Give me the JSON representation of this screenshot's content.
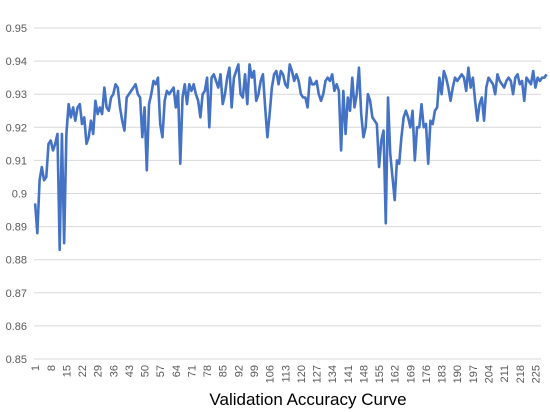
{
  "chart_data": {
    "type": "line",
    "xlabel": "Validation Accuracy Curve",
    "ylabel": "",
    "title": "",
    "ylim": [
      0.85,
      0.95
    ],
    "y_ticks": [
      "0.85",
      "0.86",
      "0.87",
      "0.88",
      "0.89",
      "0.9",
      "0.91",
      "0.92",
      "0.93",
      "0.94",
      "0.95"
    ],
    "x_ticks": [
      1,
      8,
      15,
      22,
      29,
      36,
      43,
      50,
      57,
      64,
      71,
      78,
      85,
      92,
      99,
      106,
      113,
      120,
      127,
      134,
      141,
      148,
      155,
      162,
      169,
      176,
      183,
      190,
      197,
      204,
      211,
      218,
      225
    ],
    "x_range": [
      1,
      227
    ],
    "grid": true,
    "line_color": "#4472c4",
    "series": [
      {
        "values": [
          0.897,
          0.888,
          0.904,
          0.908,
          0.904,
          0.905,
          0.915,
          0.916,
          0.913,
          0.915,
          0.918,
          0.883,
          0.918,
          0.885,
          0.918,
          0.927,
          0.923,
          0.926,
          0.922,
          0.926,
          0.927,
          0.921,
          0.923,
          0.915,
          0.917,
          0.922,
          0.918,
          0.928,
          0.924,
          0.926,
          0.924,
          0.932,
          0.926,
          0.925,
          0.929,
          0.93,
          0.933,
          0.932,
          0.926,
          0.922,
          0.919,
          0.929,
          0.93,
          0.931,
          0.932,
          0.933,
          0.93,
          0.929,
          0.917,
          0.926,
          0.907,
          0.927,
          0.93,
          0.934,
          0.933,
          0.935,
          0.921,
          0.917,
          0.928,
          0.931,
          0.93,
          0.931,
          0.932,
          0.926,
          0.931,
          0.909,
          0.929,
          0.933,
          0.927,
          0.933,
          0.931,
          0.933,
          0.93,
          0.928,
          0.923,
          0.93,
          0.931,
          0.935,
          0.92,
          0.935,
          0.936,
          0.934,
          0.932,
          0.936,
          0.927,
          0.93,
          0.935,
          0.938,
          0.926,
          0.935,
          0.937,
          0.939,
          0.93,
          0.929,
          0.936,
          0.927,
          0.939,
          0.935,
          0.937,
          0.928,
          0.93,
          0.934,
          0.936,
          0.926,
          0.917,
          0.924,
          0.932,
          0.936,
          0.937,
          0.933,
          0.937,
          0.936,
          0.933,
          0.932,
          0.939,
          0.937,
          0.934,
          0.936,
          0.934,
          0.93,
          0.929,
          0.929,
          0.926,
          0.935,
          0.933,
          0.933,
          0.934,
          0.93,
          0.928,
          0.93,
          0.934,
          0.935,
          0.934,
          0.936,
          0.931,
          0.933,
          0.931,
          0.913,
          0.931,
          0.918,
          0.929,
          0.925,
          0.935,
          0.926,
          0.93,
          0.938,
          0.924,
          0.917,
          0.92,
          0.93,
          0.928,
          0.923,
          0.922,
          0.921,
          0.908,
          0.916,
          0.919,
          0.891,
          0.929,
          0.912,
          0.905,
          0.898,
          0.91,
          0.909,
          0.917,
          0.923,
          0.925,
          0.923,
          0.92,
          0.925,
          0.91,
          0.92,
          0.92,
          0.927,
          0.92,
          0.921,
          0.909,
          0.922,
          0.921,
          0.925,
          0.926,
          0.935,
          0.93,
          0.937,
          0.935,
          0.932,
          0.928,
          0.932,
          0.935,
          0.934,
          0.935,
          0.936,
          0.935,
          0.931,
          0.938,
          0.932,
          0.935,
          0.928,
          0.922,
          0.927,
          0.929,
          0.922,
          0.932,
          0.935,
          0.934,
          0.933,
          0.93,
          0.936,
          0.934,
          0.933,
          0.932,
          0.934,
          0.935,
          0.934,
          0.93,
          0.935,
          0.936,
          0.933,
          0.934,
          0.928,
          0.935,
          0.934,
          0.933,
          0.937,
          0.932,
          0.935,
          0.934,
          0.935,
          0.935,
          0.936
        ]
      }
    ]
  }
}
